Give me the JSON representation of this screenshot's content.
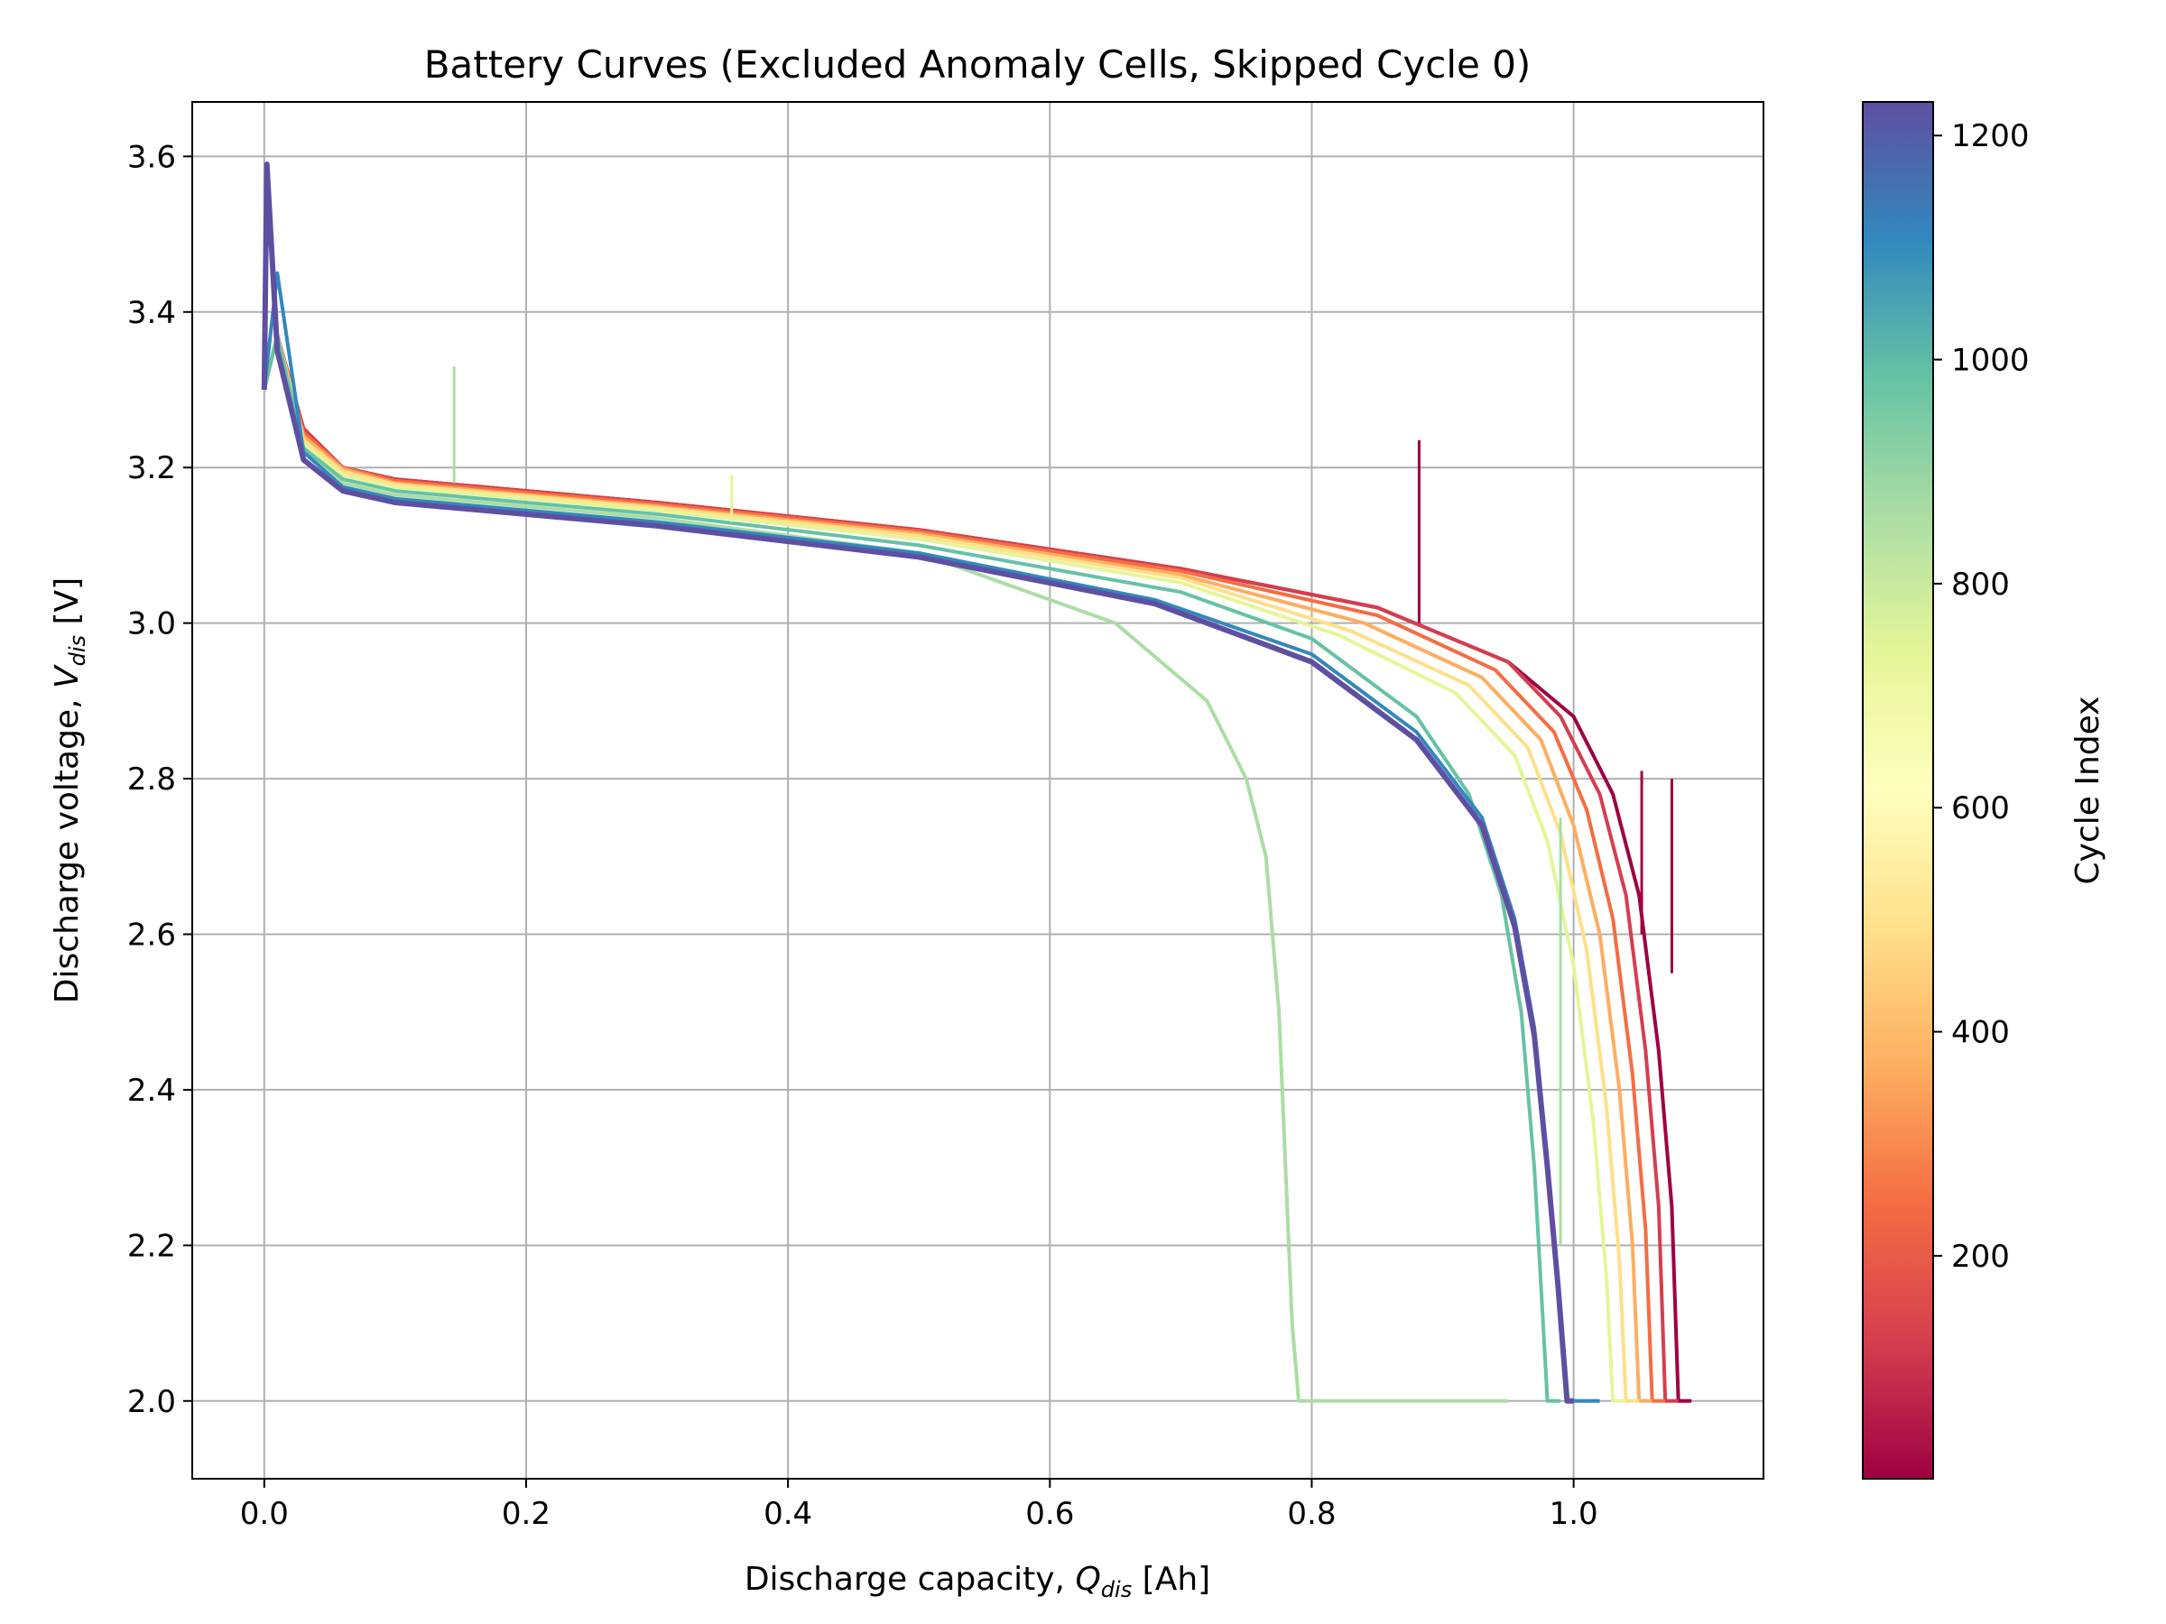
{
  "chart_data": {
    "type": "line",
    "title": "Battery Curves (Excluded Anomaly Cells, Skipped Cycle 0)",
    "xlabel": {
      "prefix": "Discharge capacity, ",
      "symbol": "Q",
      "subscript": "dis",
      "unit": " [Ah]"
    },
    "ylabel": {
      "prefix": "Discharge voltage, ",
      "symbol": "V",
      "subscript": "dis",
      "unit": " [V]"
    },
    "xlim": [
      -0.055,
      1.145
    ],
    "ylim": [
      1.9,
      3.67
    ],
    "xticks": [
      0.0,
      0.2,
      0.4,
      0.6,
      0.8,
      1.0
    ],
    "xtick_labels": [
      "0.0",
      "0.2",
      "0.4",
      "0.6",
      "0.8",
      "1.0"
    ],
    "yticks": [
      2.0,
      2.2,
      2.4,
      2.6,
      2.8,
      3.0,
      3.2,
      3.4,
      3.6
    ],
    "ytick_labels": [
      "2.0",
      "2.2",
      "2.4",
      "2.6",
      "2.8",
      "3.0",
      "3.2",
      "3.4",
      "3.6"
    ],
    "grid": true,
    "colormap": "Spectral",
    "colorbar": {
      "label": "Cycle Index",
      "range": [
        1,
        1230
      ],
      "ticks": [
        200,
        400,
        600,
        800,
        1000,
        1200
      ],
      "tick_labels": [
        "200",
        "400",
        "600",
        "800",
        "1000",
        "1200"
      ]
    },
    "series": [
      {
        "cycle": 5,
        "color": "#9e0142",
        "x": [
          0.0,
          0.01,
          0.03,
          0.06,
          0.1,
          0.3,
          0.5,
          0.7,
          0.85,
          0.95,
          1.0,
          1.03,
          1.05,
          1.065,
          1.075,
          1.08,
          1.09
        ],
        "y": [
          3.3,
          3.37,
          3.25,
          3.2,
          3.185,
          3.155,
          3.12,
          3.07,
          3.02,
          2.95,
          2.88,
          2.78,
          2.65,
          2.45,
          2.25,
          2.0,
          2.0
        ]
      },
      {
        "cycle": 100,
        "color": "#d53e4f",
        "x": [
          0.0,
          0.01,
          0.03,
          0.06,
          0.1,
          0.3,
          0.5,
          0.7,
          0.85,
          0.95,
          0.99,
          1.02,
          1.04,
          1.055,
          1.065,
          1.07,
          1.08
        ],
        "y": [
          3.3,
          3.37,
          3.25,
          3.2,
          3.185,
          3.155,
          3.12,
          3.07,
          3.02,
          2.95,
          2.88,
          2.78,
          2.65,
          2.45,
          2.25,
          2.0,
          2.0
        ]
      },
      {
        "cycle": 250,
        "color": "#f46d43",
        "x": [
          0.0,
          0.01,
          0.03,
          0.06,
          0.1,
          0.3,
          0.5,
          0.7,
          0.85,
          0.94,
          0.985,
          1.01,
          1.03,
          1.045,
          1.055,
          1.06,
          1.07
        ],
        "y": [
          3.3,
          3.37,
          3.245,
          3.2,
          3.183,
          3.153,
          3.118,
          3.067,
          3.01,
          2.94,
          2.86,
          2.76,
          2.62,
          2.42,
          2.22,
          2.0,
          2.0
        ]
      },
      {
        "cycle": 400,
        "color": "#fdae61",
        "x": [
          0.0,
          0.01,
          0.03,
          0.06,
          0.1,
          0.3,
          0.5,
          0.7,
          0.84,
          0.93,
          0.975,
          1.0,
          1.02,
          1.035,
          1.045,
          1.05,
          1.06
        ],
        "y": [
          3.3,
          3.37,
          3.24,
          3.198,
          3.18,
          3.15,
          3.115,
          3.062,
          3.0,
          2.93,
          2.85,
          2.74,
          2.6,
          2.4,
          2.2,
          2.0,
          2.0
        ]
      },
      {
        "cycle": 550,
        "color": "#fee08b",
        "x": [
          0.0,
          0.01,
          0.03,
          0.06,
          0.1,
          0.3,
          0.5,
          0.7,
          0.83,
          0.92,
          0.965,
          0.99,
          1.01,
          1.025,
          1.035,
          1.04,
          1.05
        ],
        "y": [
          3.3,
          3.37,
          3.235,
          3.195,
          3.178,
          3.148,
          3.112,
          3.058,
          2.99,
          2.92,
          2.84,
          2.73,
          2.58,
          2.38,
          2.18,
          2.0,
          2.0
        ]
      },
      {
        "cycle": 700,
        "color": "#e6f598",
        "x": [
          0.0,
          0.01,
          0.03,
          0.06,
          0.1,
          0.3,
          0.5,
          0.7,
          0.82,
          0.91,
          0.955,
          0.98,
          1.0,
          1.015,
          1.025,
          1.03,
          1.04
        ],
        "y": [
          3.3,
          3.37,
          3.23,
          3.19,
          3.175,
          3.145,
          3.108,
          3.052,
          2.985,
          2.91,
          2.83,
          2.72,
          2.56,
          2.36,
          2.16,
          2.0,
          2.0
        ]
      },
      {
        "cycle": 850,
        "color": "#abdda4",
        "x": [
          0.0,
          0.01,
          0.03,
          0.06,
          0.1,
          0.3,
          0.5,
          0.65,
          0.72,
          0.75,
          0.765,
          0.775,
          0.78,
          0.785,
          0.79,
          0.95
        ],
        "y": [
          3.3,
          3.37,
          3.22,
          3.18,
          3.165,
          3.135,
          3.09,
          3.0,
          2.9,
          2.8,
          2.7,
          2.5,
          2.3,
          2.1,
          2.0,
          2.0
        ]
      },
      {
        "cycle": 1000,
        "color": "#66c2a5",
        "x": [
          0.0,
          0.01,
          0.03,
          0.06,
          0.1,
          0.3,
          0.5,
          0.7,
          0.8,
          0.88,
          0.92,
          0.945,
          0.96,
          0.97,
          0.975,
          0.98,
          0.99
        ],
        "y": [
          3.3,
          3.37,
          3.225,
          3.185,
          3.17,
          3.14,
          3.1,
          3.04,
          2.98,
          2.88,
          2.78,
          2.65,
          2.5,
          2.3,
          2.15,
          2.0,
          2.0
        ]
      },
      {
        "cycle": 1080,
        "color": "#3288bd",
        "x": [
          0.0,
          0.01,
          0.03,
          0.06,
          0.1,
          0.3,
          0.5,
          0.68,
          0.8,
          0.88,
          0.93,
          0.955,
          0.97,
          0.98,
          0.988,
          0.995,
          1.02
        ],
        "y": [
          3.3,
          3.45,
          3.22,
          3.175,
          3.16,
          3.13,
          3.09,
          3.03,
          2.96,
          2.86,
          2.75,
          2.62,
          2.48,
          2.3,
          2.15,
          2.0,
          2.0
        ]
      },
      {
        "cycle": 1230,
        "color": "#5e4fa2",
        "x": [
          0.0,
          0.002,
          0.01,
          0.03,
          0.06,
          0.1,
          0.3,
          0.5,
          0.68,
          0.8,
          0.88,
          0.93,
          0.955,
          0.97,
          0.98,
          0.988,
          0.995,
          1.0
        ],
        "y": [
          3.3,
          3.59,
          3.35,
          3.21,
          3.17,
          3.155,
          3.125,
          3.085,
          3.025,
          2.95,
          2.85,
          2.74,
          2.61,
          2.47,
          2.3,
          2.15,
          2.0,
          2.0
        ]
      }
    ],
    "spikes": [
      {
        "x": 0.145,
        "y": 3.33,
        "base": 3.18,
        "color": "#abdda4"
      },
      {
        "x": 0.357,
        "y": 3.19,
        "base": 3.13,
        "color": "#e6f598"
      },
      {
        "x": 0.882,
        "y": 3.235,
        "base": 3.0,
        "color": "#9e0142"
      },
      {
        "x": 1.052,
        "y": 2.81,
        "base": 2.6,
        "color": "#9e0142"
      },
      {
        "x": 1.075,
        "y": 2.8,
        "base": 2.55,
        "color": "#9e0142"
      },
      {
        "x": 0.99,
        "y": 2.75,
        "base": 2.2,
        "color": "#abdda4"
      }
    ]
  }
}
